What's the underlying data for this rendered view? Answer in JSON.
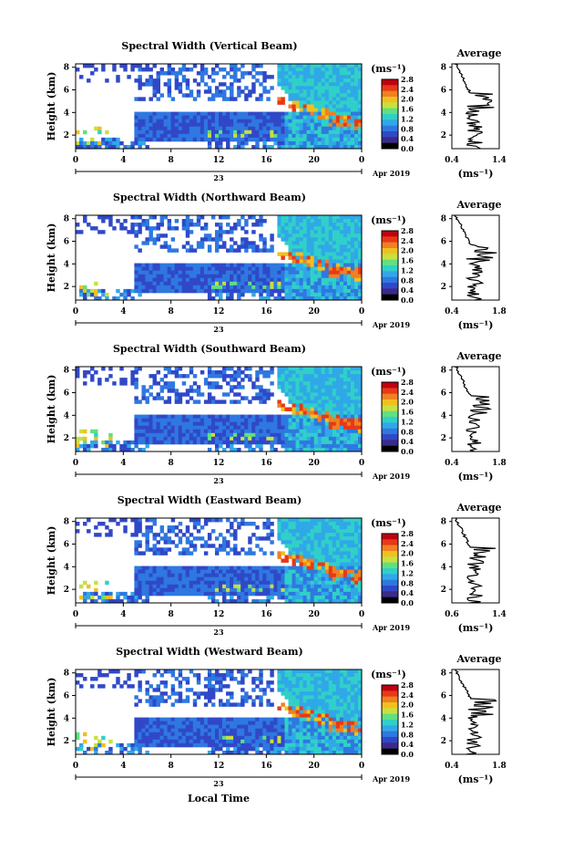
{
  "colors": {
    "scale": [
      "#000000",
      "#3a2a8a",
      "#3048c8",
      "#2e78e0",
      "#30a8e8",
      "#30d0c8",
      "#60e080",
      "#c8e040",
      "#f0c020",
      "#f08020",
      "#e83818",
      "#c00010"
    ]
  },
  "chart_data": [
    {
      "type": "heatmap",
      "title": "Spectral Width (Vertical Beam)",
      "ylabel": "Height (km)",
      "xticks": [
        "0",
        "4",
        "8",
        "12",
        "16",
        "20",
        "0"
      ],
      "yticks": [
        "2",
        "4",
        "6",
        "8"
      ],
      "date_day": "23",
      "date_month": "Apr 2019",
      "colorbar_unit": "(ms⁻¹)",
      "colorbar_ticks": [
        "0.0",
        "0.4",
        "0.8",
        "1.2",
        "1.6",
        "2.0",
        "2.4",
        "2.8"
      ],
      "average_title": "Average",
      "average_xticks": [
        "0.4",
        "1.4"
      ],
      "average_yticks": [
        "2",
        "4",
        "6",
        "8"
      ],
      "average_xlabel": "(ms⁻¹)"
    },
    {
      "type": "heatmap",
      "title": "Spectral Width (Northward Beam)",
      "ylabel": "Height (km)",
      "xticks": [
        "0",
        "4",
        "8",
        "12",
        "16",
        "20",
        "0"
      ],
      "yticks": [
        "2",
        "4",
        "6",
        "8"
      ],
      "date_day": "23",
      "date_month": "Apr 2019",
      "colorbar_unit": "(ms⁻¹)",
      "colorbar_ticks": [
        "0.0",
        "0.4",
        "0.8",
        "1.2",
        "1.6",
        "2.0",
        "2.4",
        "2.8"
      ],
      "average_title": "Average",
      "average_xticks": [
        "0.4",
        "1.8"
      ],
      "average_yticks": [
        "2",
        "4",
        "6",
        "8"
      ],
      "average_xlabel": "(ms⁻¹)"
    },
    {
      "type": "heatmap",
      "title": "Spectral Width (Southward Beam)",
      "ylabel": "Height (km)",
      "xticks": [
        "0",
        "4",
        "8",
        "12",
        "16",
        "20",
        "0"
      ],
      "yticks": [
        "2",
        "4",
        "6",
        "8"
      ],
      "date_day": "23",
      "date_month": "Apr 2019",
      "colorbar_unit": "(ms⁻¹)",
      "colorbar_ticks": [
        "0.0",
        "0.4",
        "0.8",
        "1.2",
        "1.6",
        "2.0",
        "2.4",
        "2.8"
      ],
      "average_title": "Average",
      "average_xticks": [
        "0.4",
        "1.8"
      ],
      "average_yticks": [
        "2",
        "4",
        "6",
        "8"
      ],
      "average_xlabel": "(ms⁻¹)"
    },
    {
      "type": "heatmap",
      "title": "Spectral Width (Eastward Beam)",
      "ylabel": "Height (km)",
      "xticks": [
        "0",
        "4",
        "8",
        "12",
        "16",
        "20",
        "0"
      ],
      "yticks": [
        "2",
        "4",
        "6",
        "8"
      ],
      "date_day": "23",
      "date_month": "Apr 2019",
      "colorbar_unit": "(ms⁻¹)",
      "colorbar_ticks": [
        "0.0",
        "0.4",
        "0.8",
        "1.2",
        "1.6",
        "2.0",
        "2.4",
        "2.8"
      ],
      "average_title": "Average",
      "average_xticks": [
        "0.6",
        "1.4"
      ],
      "average_yticks": [
        "2",
        "4",
        "6",
        "8"
      ],
      "average_xlabel": "(ms⁻¹)"
    },
    {
      "type": "heatmap",
      "title": "Spectral Width (Westward Beam)",
      "ylabel": "Height (km)",
      "xticks": [
        "0",
        "4",
        "8",
        "12",
        "16",
        "20",
        "0"
      ],
      "yticks": [
        "2",
        "4",
        "6",
        "8"
      ],
      "date_day": "23",
      "date_month": "Apr 2019",
      "colorbar_unit": "(ms⁻¹)",
      "colorbar_ticks": [
        "0.0",
        "0.4",
        "0.8",
        "1.2",
        "1.6",
        "2.0",
        "2.4",
        "2.8"
      ],
      "average_title": "Average",
      "average_xticks": [
        "0.4",
        "1.8"
      ],
      "average_yticks": [
        "2",
        "4",
        "6",
        "8"
      ],
      "average_xlabel": "(ms⁻¹)"
    }
  ],
  "footer": {
    "xlabel": "Local Time"
  }
}
